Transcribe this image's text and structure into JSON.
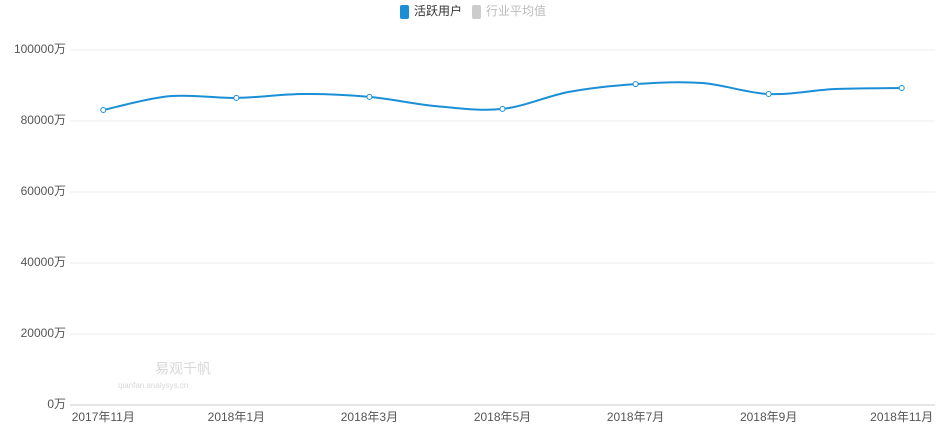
{
  "chart_data": {
    "type": "line",
    "categories": [
      "2017年11月",
      null,
      "2018年1月",
      null,
      "2018年3月",
      null,
      "2018年5月",
      null,
      "2018年7月",
      null,
      "2018年9月",
      null,
      "2018年11月"
    ],
    "series": [
      {
        "name": "活跃用户",
        "color": "#1a8fd6",
        "values": [
          83100,
          87000,
          86500,
          87600,
          86800,
          84200,
          83400,
          88200,
          90400,
          90700,
          87600,
          89000,
          89300
        ]
      },
      {
        "name": "行业平均值",
        "color": "#cccccc",
        "values": [
          null,
          null,
          null,
          null,
          null,
          null,
          null,
          null,
          null,
          null,
          null,
          null,
          null
        ]
      }
    ],
    "ylim": [
      0,
      100000
    ],
    "yticks": [
      {
        "value": 0,
        "label": "0万"
      },
      {
        "value": 20000,
        "label": "20000万"
      },
      {
        "value": 40000,
        "label": "40000万"
      },
      {
        "value": 60000,
        "label": "60000万"
      },
      {
        "value": 80000,
        "label": "80000万"
      },
      {
        "value": 100000,
        "label": "100000万"
      }
    ],
    "grid": true,
    "watermark": {
      "title": "易观千帆",
      "subtitle": "qianfan.analysys.cn"
    }
  }
}
